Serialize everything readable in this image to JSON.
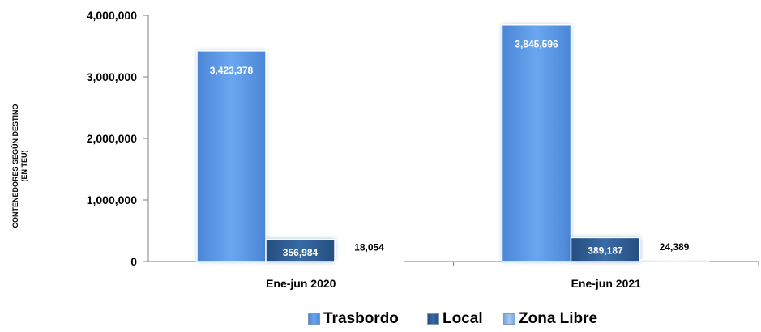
{
  "chart_data": {
    "type": "bar",
    "ylabel_lines": [
      "CONTENEDORES SEGÚN DESTINO",
      "(EN TEU)"
    ],
    "categories": [
      "Ene-jun 2020",
      "Ene-jun 2021"
    ],
    "series": [
      {
        "name": "Trasbordo",
        "values": [
          3423378,
          3845596
        ],
        "labels": [
          "3,423,378",
          "3,845,596"
        ],
        "color": "#5b9ae6"
      },
      {
        "name": "Local",
        "values": [
          356984,
          389187
        ],
        "labels": [
          "356,984",
          "389,187"
        ],
        "color": "#2f5d94"
      },
      {
        "name": "Zona Libre",
        "values": [
          18054,
          24389
        ],
        "labels": [
          "18,054",
          "24,389"
        ],
        "color": "#8db5e8"
      }
    ],
    "ylim": [
      0,
      4000000
    ],
    "yticks": [
      "0",
      "1,000,000",
      "2,000,000",
      "3,000,000",
      "4,000,000"
    ],
    "grid": false,
    "legend_position": "bottom"
  }
}
